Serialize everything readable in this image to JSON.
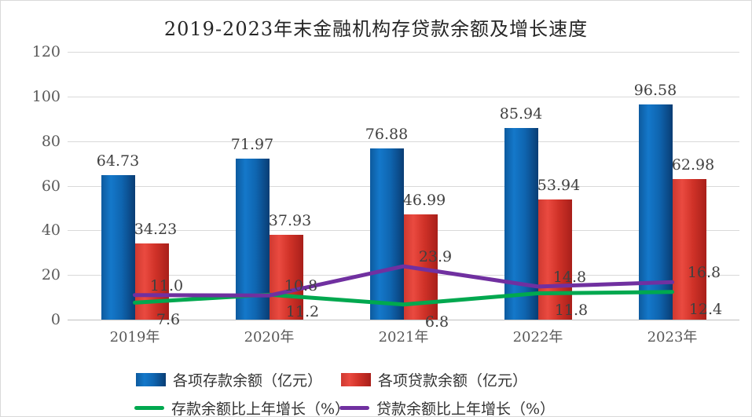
{
  "title": "2019-2023年末金融机构存贷款余额及增长速度",
  "chart_data": {
    "type": "bar",
    "subtype": "bar-line-combo",
    "title": "2019-2023年末金融机构存贷款余额及增长速度",
    "categories": [
      "2019年",
      "2020年",
      "2021年",
      "2022年",
      "2023年"
    ],
    "yticks": [
      "0",
      "20",
      "40",
      "60",
      "80",
      "100",
      "120"
    ],
    "ylim": [
      0,
      120
    ],
    "grid": true,
    "legend_position": "bottom",
    "bar_series": [
      {
        "name": "各项存款余额（亿元）",
        "values": [
          64.73,
          71.97,
          76.88,
          85.94,
          96.58
        ],
        "labels": [
          "64.73",
          "71.97",
          "76.88",
          "85.94",
          "96.58"
        ],
        "color": "#1373c2",
        "gradient": [
          "#0d5a9e",
          "#1478ca",
          "#0f65b0",
          "#093d74"
        ]
      },
      {
        "name": "各项贷款余额（亿元）",
        "values": [
          34.23,
          37.93,
          46.99,
          53.94,
          62.98
        ],
        "labels": [
          "34.23",
          "37.93",
          "46.99",
          "53.94",
          "62.98"
        ],
        "color": "#d93a31",
        "gradient": [
          "#cf3930",
          "#ea4a40",
          "#d03228",
          "#a81f1a"
        ]
      }
    ],
    "line_series": [
      {
        "name": "存款余额比上年增长（%）",
        "values": [
          7.6,
          11.2,
          6.8,
          11.8,
          12.4
        ],
        "labels": [
          "7.6",
          "11.2",
          "6.8",
          "11.8",
          "12.4"
        ],
        "color": "#00a84f",
        "label_side": "below"
      },
      {
        "name": "贷款余额比上年增长（%）",
        "values": [
          11.0,
          10.8,
          23.9,
          14.8,
          16.8
        ],
        "labels": [
          "11.0",
          "10.8",
          "23.9",
          "14.8",
          "16.8"
        ],
        "color": "#7030a0",
        "label_side": "above"
      }
    ]
  }
}
